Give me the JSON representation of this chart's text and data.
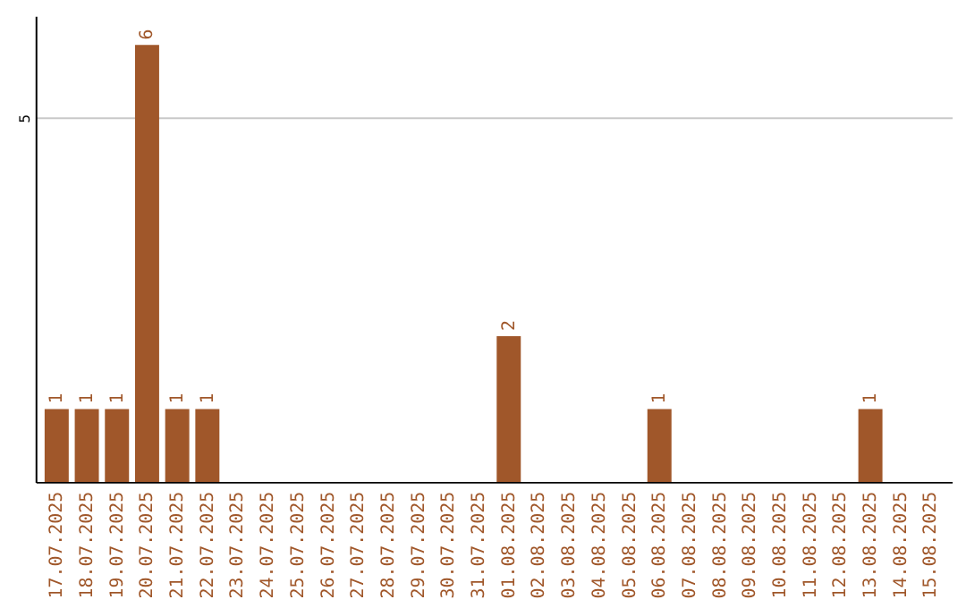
{
  "chart_data": {
    "type": "bar",
    "categories": [
      "17.07.2025",
      "18.07.2025",
      "19.07.2025",
      "20.07.2025",
      "21.07.2025",
      "22.07.2025",
      "23.07.2025",
      "24.07.2025",
      "25.07.2025",
      "26.07.2025",
      "27.07.2025",
      "28.07.2025",
      "29.07.2025",
      "30.07.2025",
      "31.07.2025",
      "01.08.2025",
      "02.08.2025",
      "03.08.2025",
      "04.08.2025",
      "05.08.2025",
      "06.08.2025",
      "07.08.2025",
      "08.08.2025",
      "09.08.2025",
      "10.08.2025",
      "11.08.2025",
      "12.08.2025",
      "13.08.2025",
      "14.08.2025",
      "15.08.2025"
    ],
    "values": [
      1,
      1,
      1,
      6,
      1,
      1,
      0,
      0,
      0,
      0,
      0,
      0,
      0,
      0,
      0,
      2,
      0,
      0,
      0,
      0,
      1,
      0,
      0,
      0,
      0,
      0,
      0,
      1,
      0,
      0
    ],
    "value_labels": [
      "1",
      "1",
      "1",
      "6",
      "1",
      "1",
      null,
      null,
      null,
      null,
      null,
      null,
      null,
      null,
      null,
      "2",
      null,
      null,
      null,
      null,
      "1",
      null,
      null,
      null,
      null,
      null,
      null,
      "1",
      null,
      null
    ],
    "color": "#a0572a",
    "ylim": [
      0,
      6.4
    ],
    "yticks": [
      5
    ],
    "grid": "y"
  }
}
